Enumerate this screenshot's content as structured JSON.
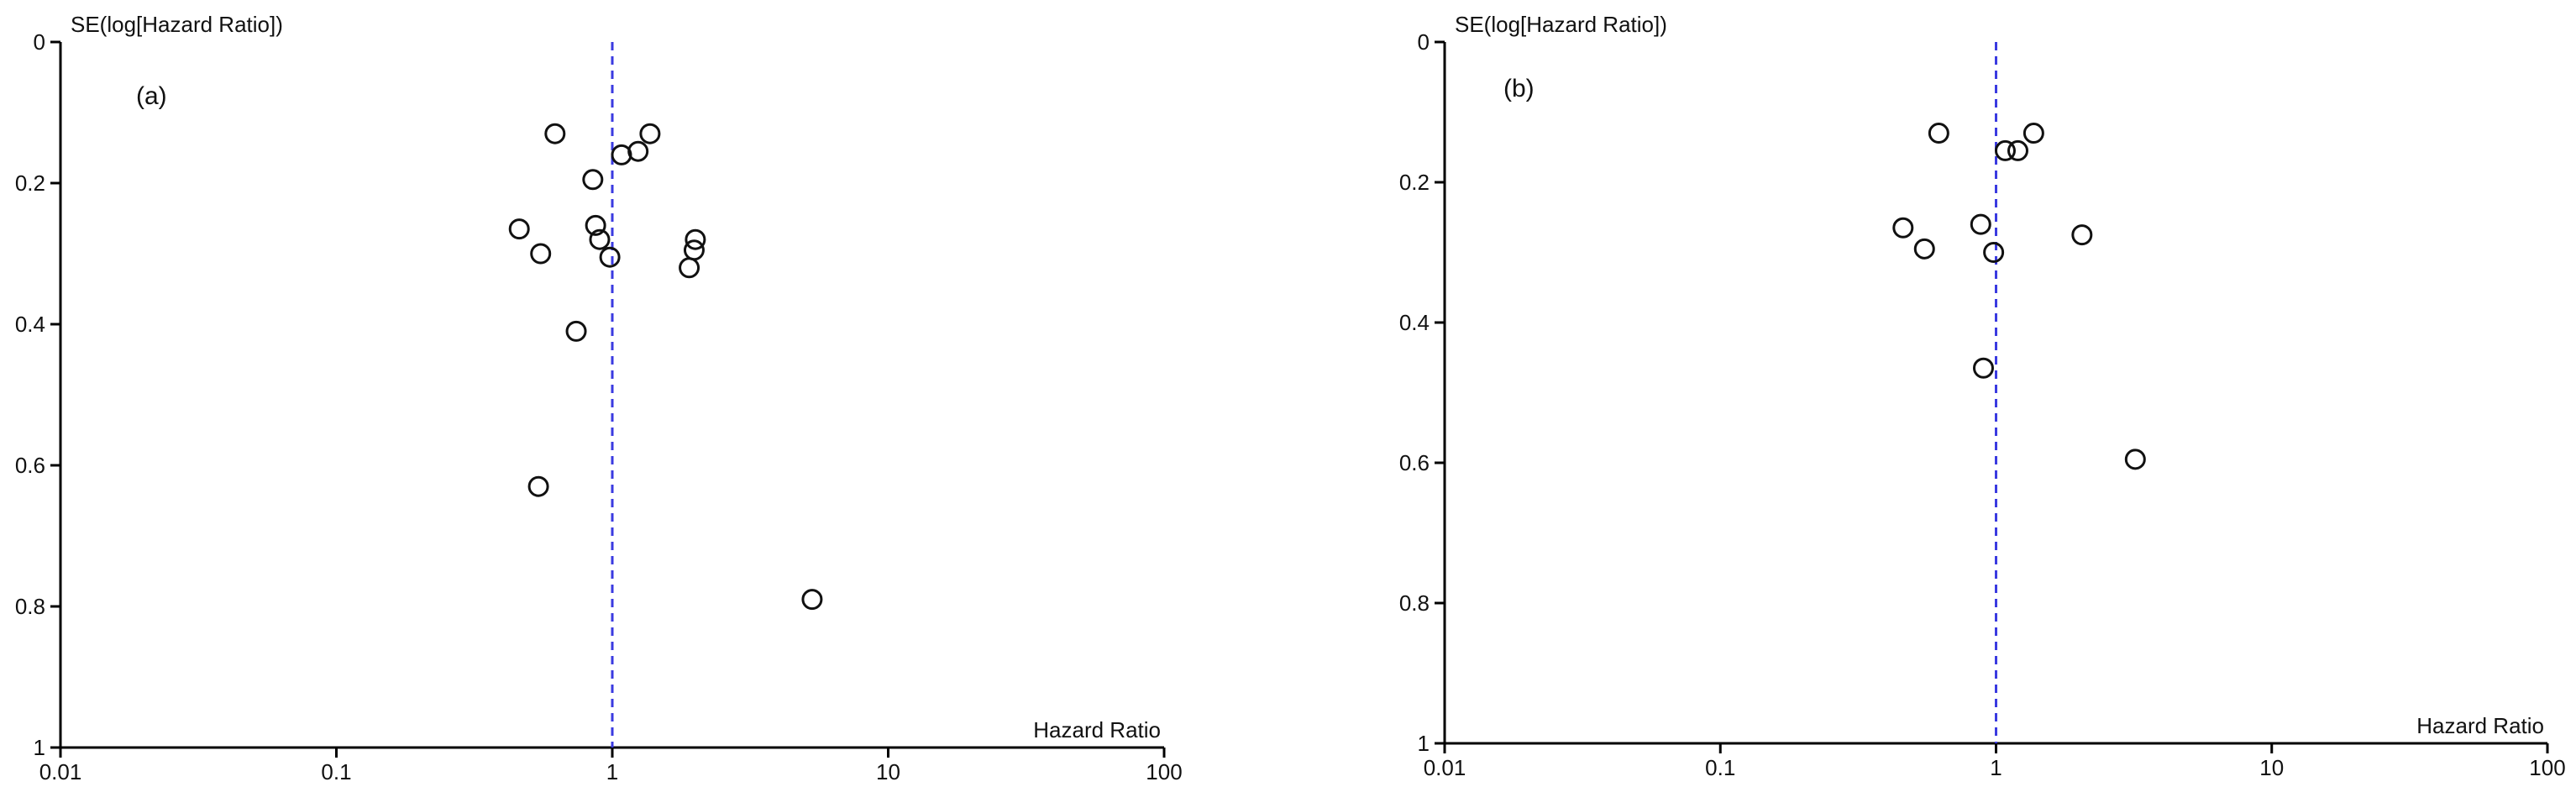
{
  "chart_data": [
    {
      "type": "scatter",
      "subtype": "funnel-plot",
      "panel_label": "(a)",
      "xlabel": "Hazard Ratio",
      "ylabel": "SE(log[Hazard Ratio])",
      "x_scale": "log",
      "xlim": [
        0.01,
        100
      ],
      "ylim": [
        0,
        1
      ],
      "y_inverted": true,
      "x_ticks": [
        "0.01",
        "0.1",
        "1",
        "10",
        "100"
      ],
      "y_ticks": [
        "0",
        "0.2",
        "0.4",
        "0.6",
        "0.8",
        "1"
      ],
      "reference_line_x": 1,
      "reference_line_color": "#3a3ae0",
      "grid": false,
      "points": [
        {
          "x": 0.62,
          "y": 0.13
        },
        {
          "x": 1.37,
          "y": 0.13
        },
        {
          "x": 1.08,
          "y": 0.16
        },
        {
          "x": 1.24,
          "y": 0.155
        },
        {
          "x": 0.85,
          "y": 0.195
        },
        {
          "x": 0.46,
          "y": 0.265
        },
        {
          "x": 0.87,
          "y": 0.26
        },
        {
          "x": 0.9,
          "y": 0.28
        },
        {
          "x": 0.55,
          "y": 0.3
        },
        {
          "x": 0.98,
          "y": 0.305
        },
        {
          "x": 2.0,
          "y": 0.28
        },
        {
          "x": 1.98,
          "y": 0.295
        },
        {
          "x": 1.9,
          "y": 0.32
        },
        {
          "x": 0.74,
          "y": 0.41
        },
        {
          "x": 0.54,
          "y": 0.63
        },
        {
          "x": 5.3,
          "y": 0.79
        }
      ]
    },
    {
      "type": "scatter",
      "subtype": "funnel-plot",
      "panel_label": "(b)",
      "xlabel": "Hazard Ratio",
      "ylabel": "SE(log[Hazard Ratio])",
      "x_scale": "log",
      "xlim": [
        0.01,
        100
      ],
      "ylim": [
        0,
        1
      ],
      "y_inverted": true,
      "x_ticks": [
        "0.01",
        "0.1",
        "1",
        "10",
        "100"
      ],
      "y_ticks": [
        "0",
        "0.2",
        "0.4",
        "0.6",
        "0.8",
        "1"
      ],
      "reference_line_x": 1,
      "reference_line_color": "#3a3ae0",
      "grid": false,
      "points": [
        {
          "x": 0.62,
          "y": 0.13
        },
        {
          "x": 1.37,
          "y": 0.13
        },
        {
          "x": 1.08,
          "y": 0.155
        },
        {
          "x": 1.2,
          "y": 0.155
        },
        {
          "x": 0.46,
          "y": 0.265
        },
        {
          "x": 0.88,
          "y": 0.26
        },
        {
          "x": 0.55,
          "y": 0.295
        },
        {
          "x": 0.98,
          "y": 0.3
        },
        {
          "x": 2.05,
          "y": 0.275
        },
        {
          "x": 0.9,
          "y": 0.465
        },
        {
          "x": 3.2,
          "y": 0.595
        }
      ]
    }
  ]
}
